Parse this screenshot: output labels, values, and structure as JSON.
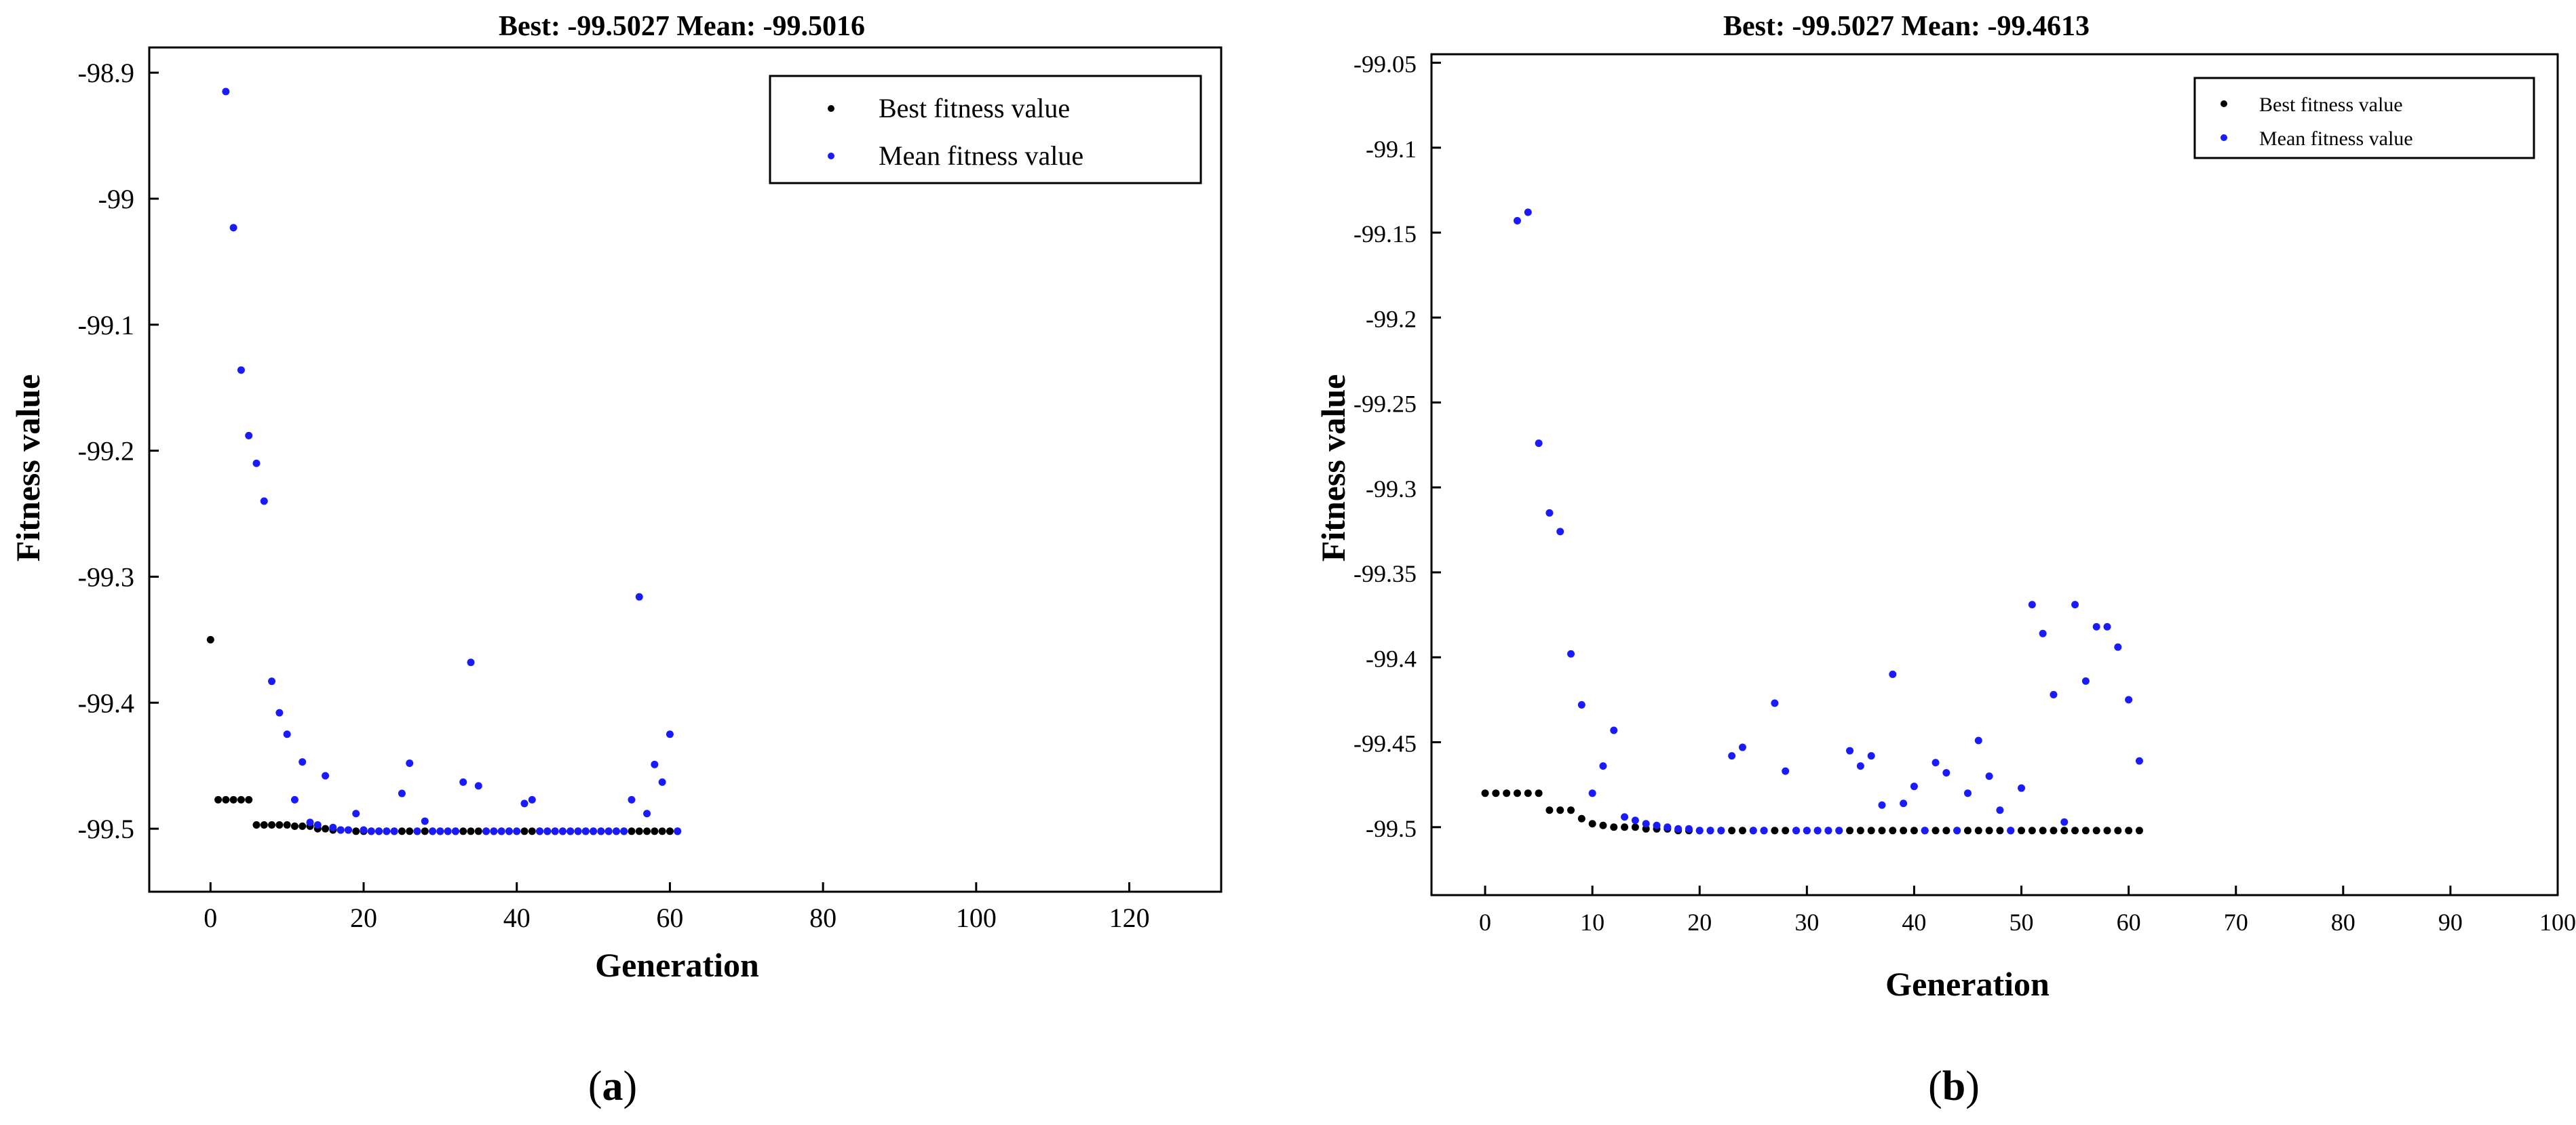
{
  "chart_data": [
    {
      "type": "scatter",
      "title": "Best: -99.5027 Mean: -99.5016",
      "xlabel": "Generation",
      "ylabel": "Fitness value",
      "xlim": [
        -8,
        132
      ],
      "ylim": [
        -99.55,
        -98.88
      ],
      "xticks": [
        0,
        20,
        40,
        60,
        80,
        100,
        120
      ],
      "yticks": [
        -99.5,
        -99.4,
        -99.3,
        -99.2,
        -99.1,
        -99.0,
        -98.9
      ],
      "ytick_labels": [
        "-99.5",
        "-99.4",
        "-99.3",
        "-99.2",
        "-99.1",
        "-99",
        "-98.9"
      ],
      "legend_position": "top-right",
      "caption_letter": "a",
      "series": [
        {
          "name": "Best fitness value",
          "color": "#000000",
          "x": [
            0,
            1,
            2,
            3,
            4,
            5,
            6,
            7,
            8,
            9,
            10,
            11,
            12,
            13,
            14,
            15,
            16,
            17,
            18,
            19,
            20,
            21,
            22,
            23,
            24,
            25,
            26,
            27,
            28,
            29,
            30,
            31,
            32,
            33,
            34,
            35,
            36,
            37,
            38,
            39,
            40,
            41,
            42,
            43,
            44,
            45,
            46,
            47,
            48,
            49,
            50,
            51,
            52,
            53,
            54,
            55,
            56,
            57,
            58,
            59,
            60,
            61
          ],
          "y": [
            -99.35,
            -99.477,
            -99.477,
            -99.477,
            -99.477,
            -99.477,
            -99.497,
            -99.497,
            -99.497,
            -99.497,
            -99.497,
            -99.498,
            -99.498,
            -99.498,
            -99.5,
            -99.5,
            -99.501,
            -99.501,
            -99.501,
            -99.502,
            -99.502,
            -99.502,
            -99.502,
            -99.502,
            -99.502,
            -99.502,
            -99.502,
            -99.502,
            -99.502,
            -99.502,
            -99.502,
            -99.502,
            -99.502,
            -99.502,
            -99.502,
            -99.502,
            -99.502,
            -99.502,
            -99.502,
            -99.502,
            -99.502,
            -99.502,
            -99.502,
            -99.502,
            -99.502,
            -99.502,
            -99.502,
            -99.502,
            -99.502,
            -99.502,
            -99.502,
            -99.502,
            -99.502,
            -99.502,
            -99.502,
            -99.502,
            -99.502,
            -99.502,
            -99.502,
            -99.502,
            -99.502,
            -99.502
          ]
        },
        {
          "name": "Mean fitness value",
          "color": "#1a1aff",
          "x": [
            2,
            3,
            4,
            5,
            6,
            7,
            8,
            9,
            10,
            11,
            12,
            13,
            14,
            15,
            16,
            17,
            18,
            19,
            20,
            21,
            22,
            23,
            24,
            25,
            26,
            27,
            28,
            29,
            30,
            31,
            32,
            33,
            34,
            35,
            36,
            37,
            38,
            39,
            40,
            41,
            42,
            43,
            44,
            45,
            46,
            47,
            48,
            49,
            50,
            51,
            52,
            53,
            54,
            55,
            56,
            57,
            58,
            59,
            60,
            61
          ],
          "y": [
            -98.915,
            -99.023,
            -99.136,
            -99.188,
            -99.21,
            -99.24,
            -99.383,
            -99.408,
            -99.425,
            -99.477,
            -99.447,
            -99.495,
            -99.497,
            -99.458,
            -99.499,
            -99.501,
            -99.501,
            -99.488,
            -99.501,
            -99.502,
            -99.502,
            -99.502,
            -99.502,
            -99.472,
            -99.448,
            -99.502,
            -99.494,
            -99.502,
            -99.502,
            -99.502,
            -99.502,
            -99.463,
            -99.368,
            -99.466,
            -99.502,
            -99.502,
            -99.502,
            -99.502,
            -99.502,
            -99.48,
            -99.477,
            -99.502,
            -99.502,
            -99.502,
            -99.502,
            -99.502,
            -99.502,
            -99.502,
            -99.502,
            -99.502,
            -99.502,
            -99.502,
            -99.502,
            -99.477,
            -99.316,
            -99.488,
            -99.449,
            -99.463,
            -99.425,
            -99.502
          ]
        }
      ]
    },
    {
      "type": "scatter",
      "title": "Best: -99.5027 Mean: -99.4613",
      "xlabel": "Generation",
      "ylabel": "Fitness value",
      "xlim": [
        -5,
        100
      ],
      "ylim": [
        -99.54,
        -99.045
      ],
      "xticks": [
        0,
        10,
        20,
        30,
        40,
        50,
        60,
        70,
        80,
        90,
        100
      ],
      "yticks": [
        -99.5,
        -99.45,
        -99.4,
        -99.35,
        -99.3,
        -99.25,
        -99.2,
        -99.15,
        -99.1,
        -99.05
      ],
      "ytick_labels": [
        "-99.5",
        "-99.45",
        "-99.4",
        "-99.35",
        "-99.3",
        "-99.25",
        "-99.2",
        "-99.15",
        "-99.1",
        "-99.05"
      ],
      "legend_position": "top-right",
      "caption_letter": "b",
      "series": [
        {
          "name": "Best fitness value",
          "color": "#000000",
          "x": [
            0,
            1,
            2,
            3,
            4,
            5,
            6,
            7,
            8,
            9,
            10,
            11,
            12,
            13,
            14,
            15,
            16,
            17,
            18,
            19,
            20,
            21,
            22,
            23,
            24,
            25,
            26,
            27,
            28,
            29,
            30,
            31,
            32,
            33,
            34,
            35,
            36,
            37,
            38,
            39,
            40,
            41,
            42,
            43,
            44,
            45,
            46,
            47,
            48,
            49,
            50,
            51,
            52,
            53,
            54,
            55,
            56,
            57,
            58,
            59,
            60,
            61
          ],
          "y": [
            -99.48,
            -99.48,
            -99.48,
            -99.48,
            -99.48,
            -99.48,
            -99.49,
            -99.49,
            -99.49,
            -99.495,
            -99.498,
            -99.499,
            -99.5,
            -99.5,
            -99.5,
            -99.501,
            -99.501,
            -99.501,
            -99.502,
            -99.502,
            -99.502,
            -99.502,
            -99.502,
            -99.502,
            -99.502,
            -99.502,
            -99.502,
            -99.502,
            -99.502,
            -99.502,
            -99.502,
            -99.502,
            -99.502,
            -99.502,
            -99.502,
            -99.502,
            -99.502,
            -99.502,
            -99.502,
            -99.502,
            -99.502,
            -99.502,
            -99.502,
            -99.502,
            -99.502,
            -99.502,
            -99.502,
            -99.502,
            -99.502,
            -99.502,
            -99.502,
            -99.502,
            -99.502,
            -99.502,
            -99.502,
            -99.502,
            -99.502,
            -99.502,
            -99.502,
            -99.502,
            -99.502,
            -99.502
          ]
        },
        {
          "name": "Mean fitness value",
          "color": "#1a1aff",
          "x": [
            3,
            4,
            5,
            6,
            7,
            8,
            9,
            10,
            11,
            12,
            13,
            14,
            15,
            16,
            17,
            18,
            19,
            20,
            21,
            22,
            23,
            24,
            25,
            26,
            27,
            28,
            29,
            30,
            31,
            32,
            33,
            34,
            35,
            36,
            37,
            38,
            39,
            40,
            41,
            42,
            43,
            44,
            45,
            46,
            47,
            48,
            49,
            50,
            51,
            52,
            53,
            54,
            55,
            56,
            57,
            58,
            59,
            60,
            61
          ],
          "y": [
            -99.143,
            -99.138,
            -99.274,
            -99.315,
            -99.326,
            -99.398,
            -99.428,
            -99.48,
            -99.464,
            -99.443,
            -99.494,
            -99.496,
            -99.498,
            -99.499,
            -99.5,
            -99.501,
            -99.501,
            -99.502,
            -99.502,
            -99.502,
            -99.458,
            -99.453,
            -99.502,
            -99.502,
            -99.427,
            -99.467,
            -99.502,
            -99.502,
            -99.502,
            -99.502,
            -99.502,
            -99.455,
            -99.464,
            -99.458,
            -99.487,
            -99.41,
            -99.486,
            -99.476,
            -99.502,
            -99.462,
            -99.468,
            -99.502,
            -99.48,
            -99.449,
            -99.47,
            -99.49,
            -99.502,
            -99.477,
            -99.369,
            -99.386,
            -99.422,
            -99.497,
            -99.369,
            -99.414,
            -99.382,
            -99.382,
            -99.394,
            -99.425,
            -99.461
          ]
        }
      ]
    }
  ]
}
